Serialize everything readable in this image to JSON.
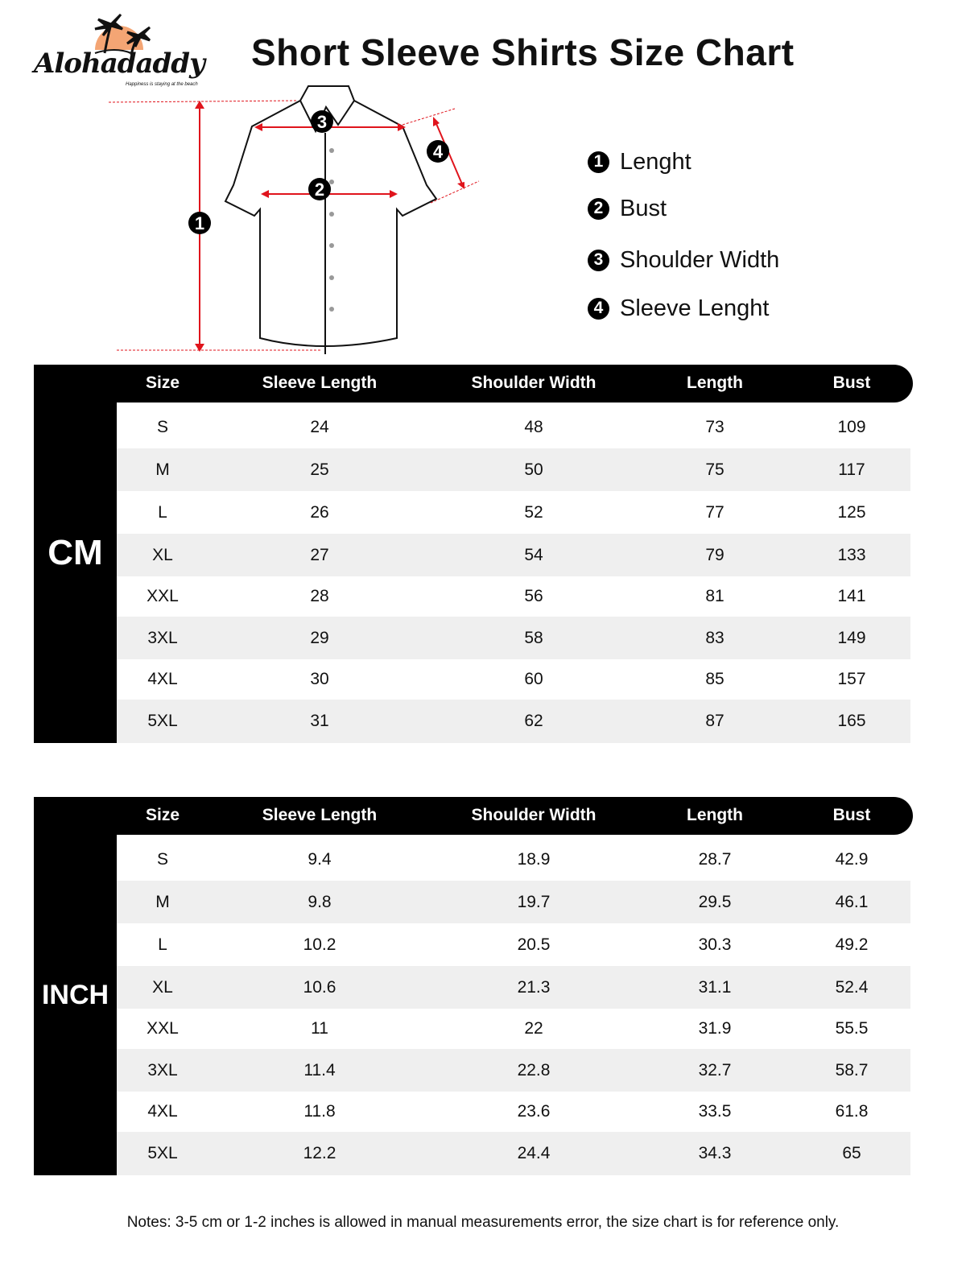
{
  "logo": {
    "brand": "Alohadaddy",
    "tagline": "Happiness is staying at the beach",
    "sun_color": "#f4a574"
  },
  "title": "Short Sleeve Shirts Size Chart",
  "diagram": {
    "line_color": "#e0141c",
    "markers": [
      "1",
      "2",
      "3",
      "4"
    ]
  },
  "legend": [
    {
      "num": "1",
      "label": "Lenght"
    },
    {
      "num": "2",
      "label": "Bust"
    },
    {
      "num": "3",
      "label": "Shoulder Width"
    },
    {
      "num": "4",
      "label": "Sleeve Lenght"
    }
  ],
  "columns": [
    "Size",
    "Sleeve Length",
    "Shoulder Width",
    "Length",
    "Bust"
  ],
  "tables": [
    {
      "unit": "CM",
      "rows": [
        [
          "S",
          "24",
          "48",
          "73",
          "109"
        ],
        [
          "M",
          "25",
          "50",
          "75",
          "117"
        ],
        [
          "L",
          "26",
          "52",
          "77",
          "125"
        ],
        [
          "XL",
          "27",
          "54",
          "79",
          "133"
        ],
        [
          "XXL",
          "28",
          "56",
          "81",
          "141"
        ],
        [
          "3XL",
          "29",
          "58",
          "83",
          "149"
        ],
        [
          "4XL",
          "30",
          "60",
          "85",
          "157"
        ],
        [
          "5XL",
          "31",
          "62",
          "87",
          "165"
        ]
      ]
    },
    {
      "unit": "INCH",
      "rows": [
        [
          "S",
          "9.4",
          "18.9",
          "28.7",
          "42.9"
        ],
        [
          "M",
          "9.8",
          "19.7",
          "29.5",
          "46.1"
        ],
        [
          "L",
          "10.2",
          "20.5",
          "30.3",
          "49.2"
        ],
        [
          "XL",
          "10.6",
          "21.3",
          "31.1",
          "52.4"
        ],
        [
          "XXL",
          "11",
          "22",
          "31.9",
          "55.5"
        ],
        [
          "3XL",
          "11.4",
          "22.8",
          "32.7",
          "58.7"
        ],
        [
          "4XL",
          "11.8",
          "23.6",
          "33.5",
          "61.8"
        ],
        [
          "5XL",
          "12.2",
          "24.4",
          "34.3",
          "65"
        ]
      ]
    }
  ],
  "notes": "Notes: 3-5 cm or 1-2 inches is allowed in manual measurements error, the size chart is for reference only."
}
